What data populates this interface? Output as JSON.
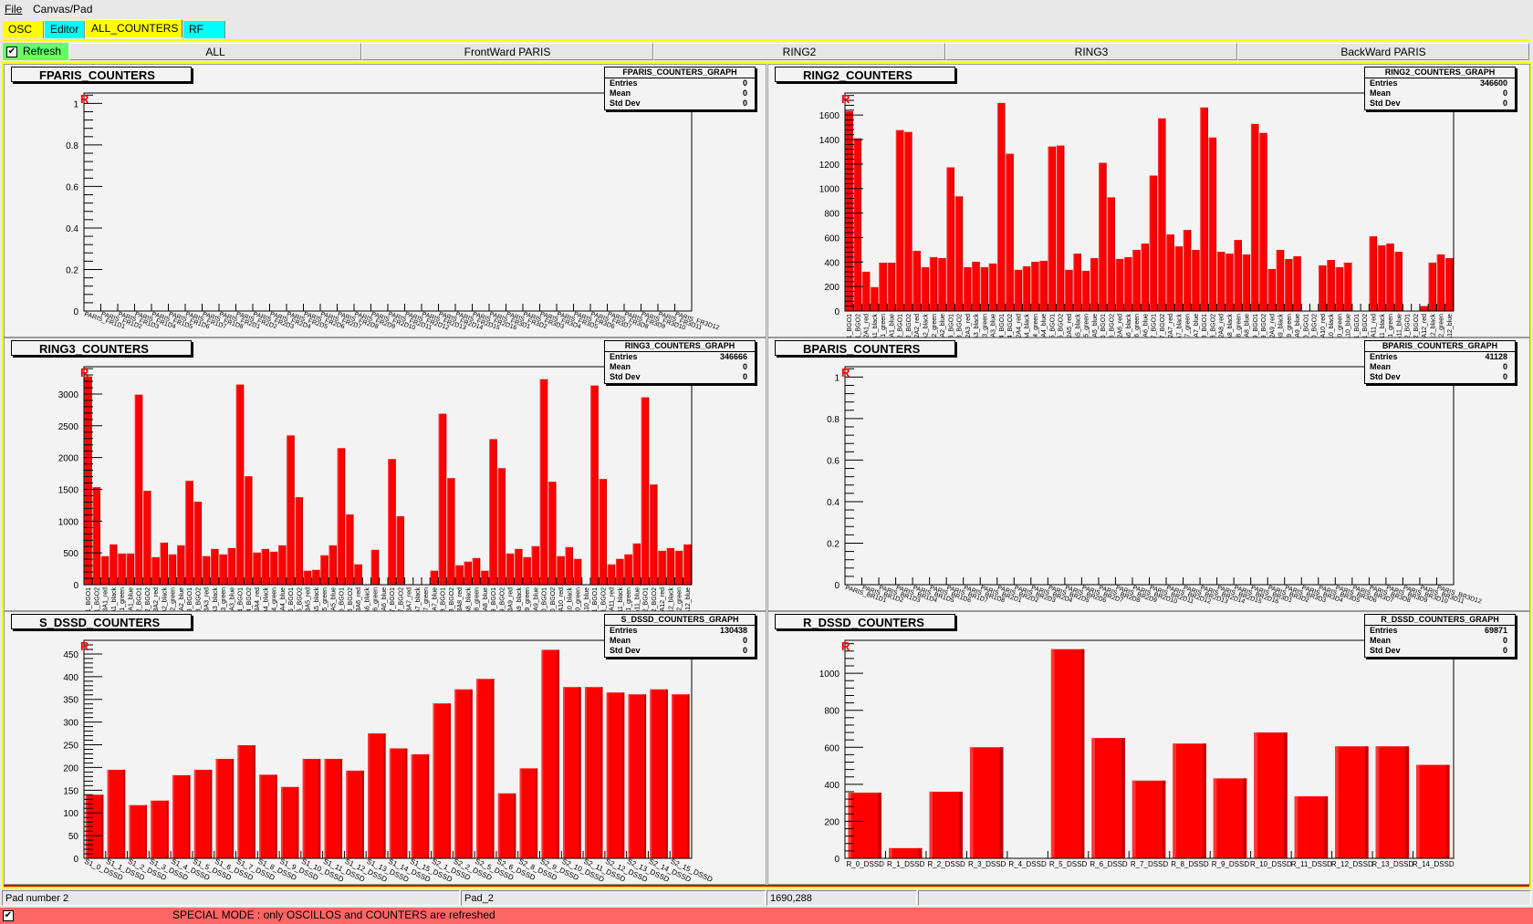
{
  "menu": {
    "items": [
      "File",
      "Canvas/Pad"
    ]
  },
  "tabs": [
    {
      "label": "OSC",
      "color": "#ffff00",
      "selected": false
    },
    {
      "label": "Editor",
      "color": "#00ffff",
      "selected": false
    },
    {
      "label": "ALL_COUNTERS",
      "color": "#ffff00",
      "selected": true
    },
    {
      "label": "RF",
      "color": "#00ffff",
      "selected": false
    }
  ],
  "toolbar": {
    "refresh_label": "Refresh",
    "refresh_checked": true,
    "refresh_color": "#66ff66",
    "buttons": [
      "ALL",
      "FrontWard PARIS",
      "RING2",
      "RING3",
      "BackWard PARIS"
    ]
  },
  "colors": {
    "bar": "#ff0000",
    "canvas_border": "#ffff00",
    "pad_bg": "#f3f3f3",
    "mode_bar": "#ff6666"
  },
  "pads": [
    {
      "title": "FPARIS_COUNTERS",
      "marker": "R",
      "stats": {
        "title": "FPARIS_COUNTERS_GRAPH",
        "entries_label": "Entries",
        "entries": "0",
        "mean_label": "Mean",
        "mean": "0",
        "std_label": "Std Dev",
        "std": "0"
      },
      "chart_data": {
        "type": "bar",
        "label_style": "slant",
        "ylim": [
          0,
          1.05
        ],
        "yticks": [
          "0",
          "0.2",
          "0.4",
          "0.6",
          "0.8",
          "1"
        ],
        "ytick_values": [
          0,
          0.2,
          0.4,
          0.6,
          0.8,
          1
        ],
        "categories": [
          "PARIS_FR1D1",
          "PARIS_FR1D2",
          "PARIS_FR1D3",
          "PARIS_FR1D4",
          "PARIS_FR1D5",
          "PARIS_FR1D6",
          "PARIS_FR1D7",
          "PARIS_FR1D8",
          "PARIS_FR2D1",
          "PARIS_FR2D2",
          "PARIS_FR2D3",
          "PARIS_FR2D4",
          "PARIS_FR2D5",
          "PARIS_FR2D6",
          "PARIS_FR2D7",
          "PARIS_FR2D8",
          "PARIS_FR2D9",
          "PARIS_FR2D10",
          "PARIS_FR2D11",
          "PARIS_FR2D12",
          "PARIS_FR2D13",
          "PARIS_FR2D14",
          "PARIS_FR2D15",
          "PARIS_FR2D16",
          "PARIS_FR3D1",
          "PARIS_FR3D2",
          "PARIS_FR3D3",
          "PARIS_FR3D4",
          "PARIS_FR3D5",
          "PARIS_FR3D6",
          "PARIS_FR3D7",
          "PARIS_FR3D8",
          "PARIS_FR3D9",
          "PARIS_FR3D10",
          "PARIS_FR3D11",
          "PARIS_FR3D12"
        ],
        "values": [
          0,
          0,
          0,
          0,
          0,
          0,
          0,
          0,
          0,
          0,
          0,
          0,
          0,
          0,
          0,
          0,
          0,
          0,
          0,
          0,
          0,
          0,
          0,
          0,
          0,
          0,
          0,
          0,
          0,
          0,
          0,
          0,
          0,
          0,
          0,
          0
        ]
      }
    },
    {
      "title": "RING2_COUNTERS",
      "marker": "R",
      "stats": {
        "title": "RING2_COUNTERS_GRAPH",
        "entries_label": "Entries",
        "entries": "346600",
        "mean_label": "Mean",
        "mean": "0",
        "std_label": "Std Dev",
        "std": "0"
      },
      "chart_data": {
        "type": "bar",
        "label_style": "vertical",
        "ylim": [
          0,
          1780
        ],
        "yticks": [
          "0",
          "200",
          "400",
          "600",
          "800",
          "1000",
          "1200",
          "1400",
          "1600"
        ],
        "ytick_values": [
          0,
          200,
          400,
          600,
          800,
          1000,
          1200,
          1400,
          1600
        ],
        "categories": [
          "R2A1_BGO1",
          "R2A1_BGO2",
          "R2A1_red",
          "R2A1_black",
          "R2A1_green",
          "R2A1_blue",
          "R2A2_BGO1",
          "R2A2_BGO2",
          "R2A2_red",
          "R2A2_black",
          "R2A2_green",
          "R2A2_blue",
          "R2A3_BGO1",
          "R2A3_BGO2",
          "R2A3_red",
          "R2A3_black",
          "R2A3_green",
          "R2A3_blue",
          "R2A4_BGO1",
          "R2A4_BGO2",
          "R2A4_red",
          "R2A4_black",
          "R2A4_green",
          "R2A4_blue",
          "R2A5_BGO1",
          "R2A5_BGO2",
          "R2A5_red",
          "R2A5_black",
          "R2A5_green",
          "R2A5_blue",
          "R2A6_BGO1",
          "R2A6_BGO2",
          "R2A6_red",
          "R2A6_black",
          "R2A6_green",
          "R2A6_blue",
          "R2A7_BGO1",
          "R2A7_BGO2",
          "R2A7_red",
          "R2A7_black",
          "R2A7_green",
          "R2A7_blue",
          "R2A8_BGO1",
          "R2A8_BGO2",
          "R2A8_red",
          "R2A8_black",
          "R2A8_green",
          "R2A8_blue",
          "R2A9_BGO1",
          "R2A9_BGO2",
          "R2A9_red",
          "R2A9_black",
          "R2A9_green",
          "R2A9_blue",
          "R2A10_BGO1",
          "R2A10_BGO2",
          "R2A10_red",
          "R2A10_black",
          "R2A10_green",
          "R2A10_blue",
          "R2A11_BGO1",
          "R2A11_BGO2",
          "R2A11_red",
          "R2A11_black",
          "R2A11_green",
          "R2A11_blue",
          "R2A12_BGO1",
          "R2A12_BGO2",
          "R2A12_red",
          "R2A12_black",
          "R2A12_green",
          "R2A12_blue"
        ],
        "values": [
          1632,
          1410,
          321,
          195,
          395,
          395,
          1477,
          1462,
          491,
          358,
          440,
          432,
          1173,
          936,
          358,
          402,
          358,
          388,
          1699,
          1284,
          336,
          365,
          402,
          410,
          1343,
          1351,
          336,
          469,
          328,
          432,
          1210,
          928,
          425,
          440,
          499,
          551,
          1106,
          1573,
          625,
          528,
          662,
          499,
          1662,
          1417,
          484,
          469,
          580,
          462,
          1528,
          1454,
          343,
          499,
          425,
          447,
          0,
          0,
          373,
          417,
          358,
          395,
          0,
          0,
          610,
          536,
          551,
          484,
          0,
          0,
          40,
          395,
          462,
          432
        ]
      }
    },
    {
      "title": "RING3_COUNTERS",
      "marker": "R",
      "stats": {
        "title": "RING3_COUNTERS_GRAPH",
        "entries_label": "Entries",
        "entries": "346666",
        "mean_label": "Mean",
        "mean": "0",
        "std_label": "Std Dev",
        "std": "0"
      },
      "chart_data": {
        "type": "bar",
        "label_style": "vertical",
        "ylim": [
          0,
          3430
        ],
        "yticks": [
          "0",
          "500",
          "1000",
          "1500",
          "2000",
          "2500",
          "3000"
        ],
        "ytick_values": [
          0,
          500,
          1000,
          1500,
          2000,
          2500,
          3000
        ],
        "categories": [
          "R3A1_BGO1",
          "R3A1_BGO2",
          "R3A1_red",
          "R3A1_black",
          "R3A1_green",
          "R3A1_blue",
          "R3A2_BGO1",
          "R3A2_BGO2",
          "R3A2_red",
          "R3A2_black",
          "R3A2_green",
          "R3A2_blue",
          "R3A3_BGO1",
          "R3A3_BGO2",
          "R3A3_red",
          "R3A3_black",
          "R3A3_green",
          "R3A3_blue",
          "R3A4_BGO1",
          "R3A4_BGO2",
          "R3A4_red",
          "R3A4_black",
          "R3A4_green",
          "R3A4_blue",
          "R3A5_BGO1",
          "R3A5_BGO2",
          "R3A5_red",
          "R3A5_black",
          "R3A5_green",
          "R3A5_blue",
          "R3A6_BGO1",
          "R3A6_BGO2",
          "R3A6_red",
          "R3A6_black",
          "R3A6_green",
          "R3A6_blue",
          "R3A7_BGO1",
          "R3A7_BGO2",
          "R3A7_red",
          "R3A7_black",
          "R3A7_green",
          "R3A7_blue",
          "R3A8_BGO1",
          "R3A8_BGO2",
          "R3A8_red",
          "R3A8_black",
          "R3A8_green",
          "R3A8_blue",
          "R3A9_BGO1",
          "R3A9_BGO2",
          "R3A9_red",
          "R3A9_black",
          "R3A9_green",
          "R3A9_blue",
          "R3A10_BGO1",
          "R3A10_BGO2",
          "R3A10_red",
          "R3A10_black",
          "R3A10_green",
          "R3A10_blue",
          "R3A11_BGO1",
          "R3A11_BGO2",
          "R3A11_red",
          "R3A11_black",
          "R3A11_green",
          "R3A11_blue",
          "R3A12_BGO1",
          "R3A12_BGO2",
          "R3A12_red",
          "R3A12_black",
          "R3A12_green",
          "R3A12_blue"
        ],
        "values": [
          3276,
          1533,
          448,
          633,
          490,
          490,
          2990,
          1476,
          433,
          662,
          476,
          619,
          1633,
          1305,
          448,
          562,
          476,
          576,
          3148,
          1705,
          505,
          562,
          519,
          619,
          2348,
          1376,
          219,
          233,
          462,
          619,
          2148,
          1105,
          319,
          0,
          548,
          0,
          1976,
          1076,
          0,
          0,
          0,
          219,
          2690,
          1676,
          305,
          362,
          419,
          219,
          2290,
          1833,
          490,
          562,
          433,
          605,
          3233,
          1619,
          448,
          590,
          405,
          0,
          3133,
          1662,
          319,
          405,
          476,
          648,
          2948,
          1576,
          533,
          576,
          533,
          633
        ]
      }
    },
    {
      "title": "BPARIS_COUNTERS",
      "marker": "R",
      "stats": {
        "title": "BPARIS_COUNTERS_GRAPH",
        "entries_label": "Entries",
        "entries": "41128",
        "mean_label": "Mean",
        "mean": "0",
        "std_label": "Std Dev",
        "std": "0"
      },
      "chart_data": {
        "type": "bar",
        "label_style": "slant",
        "ylim": [
          0,
          1.05
        ],
        "yticks": [
          "0",
          "0.2",
          "0.4",
          "0.6",
          "0.8",
          "1"
        ],
        "ytick_values": [
          0,
          0.2,
          0.4,
          0.6,
          0.8,
          1
        ],
        "categories": [
          "PARIS_BR1D1",
          "PARIS_BR1D2",
          "PARIS_BR1D3",
          "PARIS_BR1D4",
          "PARIS_BR1D5",
          "PARIS_BR1D6",
          "PARIS_BR1D7",
          "PARIS_BR1D8",
          "PARIS_BR2D1",
          "PARIS_BR2D2",
          "PARIS_BR2D3",
          "PARIS_BR2D4",
          "PARIS_BR2D5",
          "PARIS_BR2D6",
          "PARIS_BR2D7",
          "PARIS_BR2D8",
          "PARIS_BR2D9",
          "PARIS_BR2D10",
          "PARIS_BR2D11",
          "PARIS_BR2D12",
          "PARIS_BR2D13",
          "PARIS_BR2D14",
          "PARIS_BR2D15",
          "PARIS_BR2D16",
          "PARIS_BR3D1",
          "PARIS_BR3D2",
          "PARIS_BR3D3",
          "PARIS_BR3D4",
          "PARIS_BR3D5",
          "PARIS_BR3D6",
          "PARIS_BR3D7",
          "PARIS_BR3D8",
          "PARIS_BR3D9",
          "PARIS_BR3D10",
          "PARIS_BR3D11",
          "PARIS_BR3D12"
        ],
        "values": [
          0,
          0,
          0,
          0,
          0,
          0,
          0,
          0,
          0,
          0,
          0,
          0,
          0,
          0,
          0,
          0,
          0,
          0,
          0,
          0,
          0,
          0,
          0,
          0,
          0,
          0,
          0,
          0,
          0,
          0,
          0,
          0,
          0,
          0,
          0,
          0
        ]
      }
    },
    {
      "title": "S_DSSD_COUNTERS",
      "marker": "R",
      "stats": {
        "title": "S_DSSD_COUNTERS_GRAPH",
        "entries_label": "Entries",
        "entries": "130438",
        "mean_label": "Mean",
        "mean": "0",
        "std_label": "Std Dev",
        "std": "0"
      },
      "chart_data": {
        "type": "bar",
        "label_style": "slant",
        "ylim": [
          0,
          480
        ],
        "yticks": [
          "0",
          "50",
          "100",
          "150",
          "200",
          "250",
          "300",
          "350",
          "400",
          "450"
        ],
        "ytick_values": [
          0,
          50,
          100,
          150,
          200,
          250,
          300,
          350,
          400,
          450
        ],
        "categories": [
          "S1_0_DSSD",
          "S1_1_DSSD",
          "S1_2_DSSD",
          "S1_3_DSSD",
          "S1_4_DSSD",
          "S1_5_DSSD",
          "S1_6_DSSD",
          "S1_7_DSSD",
          "S1_8_DSSD",
          "S1_9_DSSD",
          "S1_10_DSSD",
          "S1_11_DSSD",
          "S1_12_DSSD",
          "S1_13_DSSD",
          "S1_14_DSSD",
          "S1_15_DSSD",
          "S2_1_DSSD",
          "S2_2_DSSD",
          "S2_5_DSSD",
          "S2_6_DSSD",
          "S2_8_DSSD",
          "S2_9_DSSD",
          "S2_10_DSSD",
          "S2_11_DSSD",
          "S2_12_DSSD",
          "S2_13_DSSD",
          "S2_14_DSSD",
          "S2_15_DSSD"
        ],
        "values": [
          140,
          195,
          117,
          127,
          183,
          195,
          219,
          249,
          184,
          157,
          219,
          219,
          193,
          275,
          242,
          229,
          341,
          372,
          395,
          143,
          198,
          459,
          377,
          377,
          365,
          361,
          372,
          361
        ]
      }
    },
    {
      "title": "R_DSSD_COUNTERS",
      "marker": "R",
      "stats": {
        "title": "R_DSSD_COUNTERS_GRAPH",
        "entries_label": "Entries",
        "entries": "69871",
        "mean_label": "Mean",
        "mean": "0",
        "std_label": "Std Dev",
        "std": "0"
      },
      "chart_data": {
        "type": "bar",
        "label_style": "horizontal",
        "ylim": [
          0,
          1178
        ],
        "yticks": [
          "0",
          "200",
          "400",
          "600",
          "800",
          "1000"
        ],
        "ytick_values": [
          0,
          200,
          400,
          600,
          800,
          1000
        ],
        "categories": [
          "R_0_DSSD",
          "R_1_DSSD",
          "R_2_DSSD",
          "R_3_DSSD",
          "R_4_DSSD",
          "R_5_DSSD",
          "R_6_DSSD",
          "R_7_DSSD",
          "R_8_DSSD",
          "R_9_DSSD",
          "R_10_DSSD",
          "R_11_DSSD",
          "R_12_DSSD",
          "R_13_DSSD",
          "R_14_DSSD"
        ],
        "values": [
          355,
          55,
          360,
          600,
          0,
          1130,
          650,
          420,
          620,
          432,
          680,
          335,
          605,
          605,
          505
        ]
      }
    }
  ],
  "status": {
    "fields": [
      "Pad number 2",
      "Pad_2",
      "1690,288",
      ""
    ],
    "mode_checked": true,
    "mode_message": "SPECIAL MODE : only OSCILLOS and COUNTERS are refreshed"
  }
}
